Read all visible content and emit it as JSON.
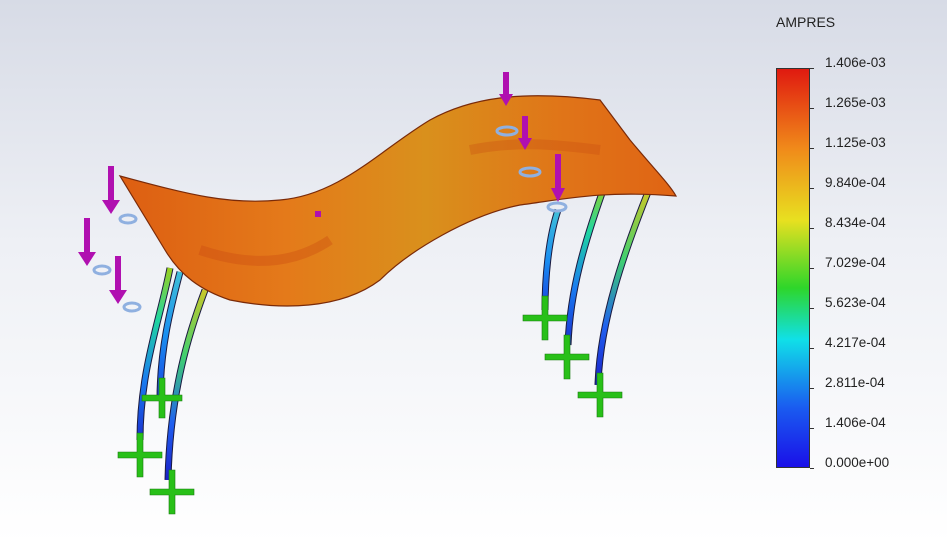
{
  "legend": {
    "title": "AMPRES",
    "ticks": [
      "1.406e-03",
      "1.265e-03",
      "1.125e-03",
      "9.840e-04",
      "8.434e-04",
      "7.029e-04",
      "5.623e-04",
      "4.217e-04",
      "2.811e-04",
      "1.406e-04",
      "0.000e+00"
    ],
    "colors": {
      "top": "#e01a10",
      "orange": "#f08a1a",
      "yellow": "#e8e020",
      "green": "#2ed62a",
      "cyan": "#10e0e8",
      "blue_mid": "#1a5cf0",
      "bottom": "#1a10e8"
    }
  },
  "model": {
    "surface_color": "#e8741c",
    "load_arrow_color": "#b010b0",
    "fixture_color": "#28c018",
    "load_arrow_icon": "load-arrow-icon",
    "fixture_icon": "fixed-geometry-icon"
  }
}
